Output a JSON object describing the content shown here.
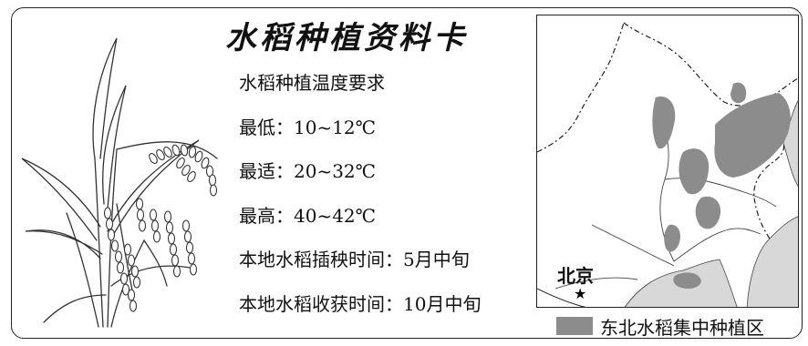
{
  "card": {
    "title": "水稻种植资料卡",
    "lines": [
      "水稻种植温度要求",
      "最低：10~12℃",
      "最适：20~32℃",
      "最高：40~42℃",
      "本地水稻插秧时间：5月中旬",
      "本地水稻收获时间：10月中旬"
    ]
  },
  "illustration": {
    "icon": "rice-plant-icon"
  },
  "map": {
    "city_label": "北京",
    "city_marker_icon": "star-icon",
    "legend": {
      "label": "东北水稻集中种植区",
      "color": "#8c8c8c"
    },
    "colors": {
      "region": "#8c8c8c",
      "sea": "#d8d8d8",
      "border": "#222222"
    }
  }
}
